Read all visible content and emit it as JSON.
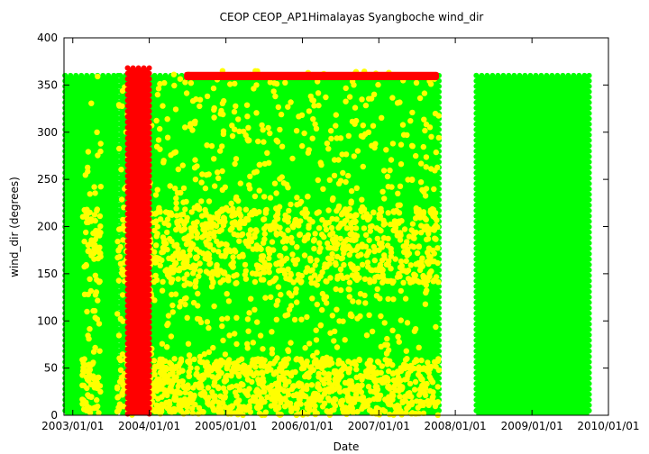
{
  "chart_data": {
    "type": "scatter",
    "title": "CEOP CEOP_AP1Himalayas Syangboche  wind_dir",
    "xlabel": "Date",
    "ylabel": "wind_dir (degrees)",
    "x_ticks": [
      "2003/01/01",
      "2004/01/01",
      "2005/01/01",
      "2006/01/01",
      "2007/01/01",
      "2008/01/01",
      "2009/01/01",
      "2010/01/01"
    ],
    "y_ticks": [
      0,
      50,
      100,
      150,
      200,
      250,
      300,
      350,
      400
    ],
    "xlim": [
      "2002/11/20",
      "2010/01/01"
    ],
    "ylim": [
      0,
      400
    ],
    "grid": false,
    "legend": "none",
    "series": [
      {
        "color": "#00ff00",
        "segments": [
          {
            "x_start": "2002/11/25",
            "x_end": "2003/08/05",
            "y_min": 0,
            "y_max": 360
          },
          {
            "x_start": "2003/08/15",
            "x_end": "2003/10/10",
            "y_min": 0,
            "y_max": 360
          },
          {
            "x_start": "2004/01/01",
            "x_end": "2007/10/15",
            "y_min": 0,
            "y_max": 360
          },
          {
            "x_start": "2008/04/10",
            "x_end": "2009/10/01",
            "y_min": 0,
            "y_max": 360
          }
        ]
      },
      {
        "color": "#ffff00",
        "segments": [
          {
            "x_start": "2003/02/15",
            "x_end": "2003/05/15",
            "y_min": 0,
            "y_max": 360
          },
          {
            "x_start": "2003/08/01",
            "x_end": "2003/10/15",
            "y_min": 0,
            "y_max": 360
          },
          {
            "x_start": "2004/01/01",
            "x_end": "2007/10/15",
            "y_min": 0,
            "y_max": 365
          }
        ]
      },
      {
        "color": "#ff0000",
        "segments": [
          {
            "x_start": "2003/09/20",
            "x_end": "2004/01/01",
            "y_min": 0,
            "y_max": 368
          },
          {
            "x_start": "2004/06/15",
            "x_end": "2007/10/15",
            "y_min": 357,
            "y_max": 362
          }
        ]
      }
    ]
  }
}
